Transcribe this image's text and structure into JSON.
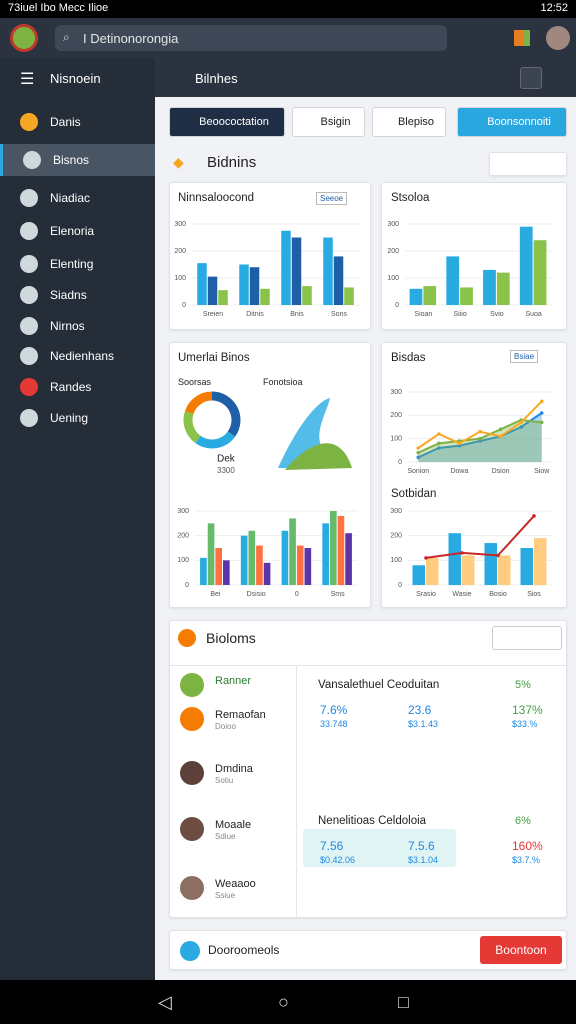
{
  "status_bar": {
    "left": "73iuel Ibo Mecc Ilioe",
    "time": "12:52"
  },
  "app_bar": {
    "search": "I Detinonorongia"
  },
  "sidebar": {
    "title": "Nisnoein",
    "selected": 1,
    "items": [
      "Danis",
      "Bisnos",
      "Niadiac",
      "Elenoria",
      "Elenting",
      "Siadns",
      "Nirnos",
      "Nedienhans",
      "Randes",
      "Uening"
    ]
  },
  "header": {
    "title": "Bilnhes"
  },
  "toolbar": {
    "buttons": [
      "Beoococtation",
      "Bsigin",
      "Blepiso",
      "Boonsonnoiti"
    ]
  },
  "section1": {
    "title": "Bidnins"
  },
  "card3_labels": [
    "Soorsas",
    "Fonotsioa"
  ],
  "chart_data": [
    {
      "type": "bar",
      "title": "Ninnsaloocond",
      "badge": "Seeoe",
      "categories": [
        "Sreien",
        "Ditnis",
        "Bnis",
        "Sons"
      ],
      "series": [
        {
          "color": "#29abe2",
          "values": [
            155,
            150,
            275,
            250
          ]
        },
        {
          "color": "#1f5fa8",
          "values": [
            105,
            140,
            250,
            180
          ]
        },
        {
          "color": "#8bc34a",
          "values": [
            55,
            60,
            70,
            65
          ]
        }
      ],
      "ylim": [
        0,
        300
      ],
      "yticks": [
        0,
        100,
        200,
        300
      ]
    },
    {
      "type": "bar",
      "title": "Stsoloa",
      "categories": [
        "Sioan",
        "Siiio",
        "Svio",
        "Suoa"
      ],
      "series": [
        {
          "color": "#29abe2",
          "values": [
            60,
            180,
            130,
            290
          ]
        },
        {
          "color": "#8bc34a",
          "values": [
            70,
            65,
            120,
            240
          ]
        }
      ],
      "ylim": [
        0,
        300
      ],
      "yticks": [
        0,
        100,
        200,
        300
      ]
    },
    {
      "type": "pie",
      "title": "Umerlai Binos",
      "center_label": "Dek",
      "center_value": "3300",
      "values": [
        35,
        25,
        20,
        20
      ],
      "colors": [
        "#1f5fa8",
        "#29abe2",
        "#8bc34a",
        "#f57c00"
      ]
    },
    {
      "type": "bar",
      "categories": [
        "Bei",
        "Dsisio",
        "0",
        "Sms"
      ],
      "series": [
        {
          "color": "#29abe2",
          "values": [
            110,
            200,
            220,
            250
          ]
        },
        {
          "color": "#66bb6a",
          "values": [
            250,
            220,
            270,
            300
          ]
        },
        {
          "color": "#ff7043",
          "values": [
            150,
            160,
            160,
            280
          ]
        },
        {
          "color": "#5c35a8",
          "values": [
            100,
            90,
            150,
            210
          ]
        }
      ],
      "ylim": [
        0,
        300
      ],
      "yticks": [
        0,
        100,
        200,
        300
      ]
    },
    {
      "type": "line",
      "title": "Bisdas",
      "badge": "Bsiae",
      "categories": [
        "Sonion",
        null,
        "Dowa",
        null,
        "Dsion",
        null,
        "Siow"
      ],
      "series": [
        {
          "color": "#1e88e5",
          "area": true,
          "values": [
            20,
            60,
            70,
            90,
            110,
            150,
            210
          ]
        },
        {
          "color": "#7cb342",
          "area": true,
          "values": [
            40,
            80,
            90,
            100,
            140,
            180,
            170
          ]
        },
        {
          "color": "#f9a825",
          "values": [
            60,
            120,
            80,
            130,
            110,
            170,
            260
          ]
        }
      ],
      "ylim": [
        0,
        300
      ],
      "yticks": [
        0,
        100,
        200,
        300
      ]
    },
    {
      "type": "bar",
      "title": "Sotbidan",
      "categories": [
        "Srasio",
        "Wasie",
        "Bosio",
        "Sios"
      ],
      "series": [
        {
          "color": "#29abe2",
          "values": [
            80,
            210,
            170,
            150
          ]
        },
        {
          "color": "#ffcc80",
          "values": [
            110,
            120,
            120,
            190
          ]
        },
        {
          "color": "#c62828",
          "type": "line",
          "values": [
            110,
            130,
            120,
            280
          ]
        }
      ],
      "ylim": [
        0,
        300
      ],
      "yticks": [
        0,
        100,
        200,
        300
      ]
    }
  ],
  "section2": {
    "title": "Bioloms",
    "rows": [
      {
        "name": "Ranner"
      },
      {
        "name": "Remaofan",
        "sub": "Doioo"
      },
      {
        "name": "Dmdina",
        "sub": "Sotiu"
      },
      {
        "name": "Moaale",
        "sub": "Sdiue"
      },
      {
        "name": "Weaaoo",
        "sub": "Ssiue"
      }
    ],
    "panels": [
      {
        "title": "Vansalethuel Ceoduitan",
        "change": "5%",
        "metrics": [
          {
            "value": "7.6%",
            "sub": "33.748"
          },
          {
            "value": "23.6",
            "sub": "$3.1.43"
          },
          {
            "value": "137%",
            "sub": "$33.%"
          }
        ]
      },
      {
        "title": "Nenelitioas Celdoloia",
        "change": "6%",
        "metrics": [
          {
            "value": "7.56",
            "sub": "$0.42.06"
          },
          {
            "value": "7.5.6",
            "sub": "$3.1.04"
          },
          {
            "value": "160%",
            "sub": "$3.7.%"
          }
        ]
      }
    ]
  },
  "footer": {
    "label": "Dooroomeols",
    "button": "Boontoon"
  }
}
